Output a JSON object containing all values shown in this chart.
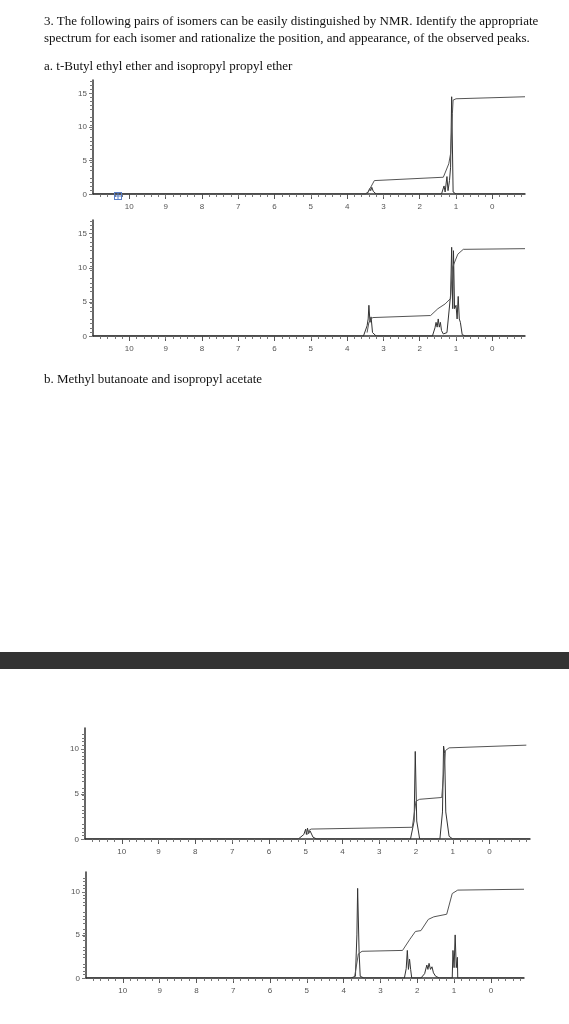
{
  "chart_data": [
    {
      "type": "line",
      "title": "3. The following pairs of isomers can be easily distinguished by NMR. Identify the appropriate spectrum for each isomer and rationalize the position, and appearance, of the observed peaks.",
      "subtitle": "a. t-Butyl ethyl ether and isopropyl propyl ether",
      "xlim": [
        11,
        -0.9
      ],
      "ylim": [
        0,
        17
      ],
      "xticks": [
        10,
        9,
        8,
        7,
        6,
        5,
        4,
        3,
        2,
        1,
        0
      ],
      "yticks": [
        0,
        5,
        10,
        15
      ],
      "grid": false,
      "series": [
        {
          "color": "#333333",
          "x": [
            11,
            3.5,
            3.42,
            3.38,
            3.35,
            3.32,
            3.28,
            3.2,
            1.4,
            1.33,
            1.3,
            1.25,
            1.22,
            1.18,
            1.15,
            1.12,
            1.08,
            1.0,
            -0.9
          ],
          "values": [
            0,
            0,
            0.3,
            0.8,
            0.5,
            1.0,
            0.4,
            0,
            0,
            1.2,
            0.3,
            2.6,
            0.5,
            2.0,
            4.0,
            14.5,
            0.3,
            0,
            0
          ]
        },
        {
          "color": "#555555",
          "x": [
            3.45,
            3.3,
            3.25,
            1.35,
            1.2,
            1.15,
            1.1,
            1.08,
            1.0,
            -0.9
          ],
          "values": [
            0,
            1.5,
            2.0,
            2.5,
            4.5,
            6.0,
            12.0,
            14.0,
            14.2,
            14.5
          ]
        }
      ]
    },
    {
      "type": "line",
      "xlim": [
        11,
        -0.9
      ],
      "ylim": [
        0,
        17
      ],
      "xticks": [
        10,
        9,
        8,
        7,
        6,
        5,
        4,
        3,
        2,
        1,
        0
      ],
      "yticks": [
        0,
        5,
        10,
        15
      ],
      "grid": false,
      "series": [
        {
          "color": "#333333",
          "x": [
            11,
            3.55,
            3.45,
            3.42,
            3.4,
            3.37,
            3.34,
            3.3,
            3.2,
            1.65,
            1.58,
            1.55,
            1.52,
            1.49,
            1.46,
            1.43,
            1.4,
            1.35,
            1.25,
            1.15,
            1.12,
            1.09,
            1.07,
            1.04,
            1.0,
            0.97,
            0.94,
            0.91,
            0.88,
            0.83,
            0.75,
            -0.9
          ],
          "values": [
            0,
            0,
            1.5,
            2.5,
            4.5,
            2.0,
            2.8,
            0.5,
            0,
            0,
            1.2,
            2.0,
            1.3,
            2.5,
            1.3,
            2.0,
            0.8,
            0.3,
            0.5,
            6.0,
            13.0,
            4.0,
            12.5,
            4.0,
            4.5,
            2.5,
            5.8,
            2.5,
            2.0,
            0.2,
            0,
            0
          ]
        },
        {
          "color": "#555555",
          "x": [
            3.45,
            3.4,
            3.3,
            1.7,
            1.5,
            1.3,
            1.15,
            1.1,
            0.95,
            0.8,
            -0.9
          ],
          "values": [
            0.5,
            2.0,
            2.7,
            3.0,
            4.0,
            4.7,
            5.5,
            10.0,
            12.0,
            12.7,
            12.8
          ]
        }
      ]
    },
    {
      "type": "line",
      "title": "b. Methyl butanoate and isopropyl acetate",
      "xlim": [
        11,
        -1.1
      ],
      "ylim": [
        0,
        12.3
      ],
      "xticks": [
        10,
        9,
        8,
        7,
        6,
        5,
        4,
        3,
        2,
        1,
        0
      ],
      "yticks": [
        0,
        5,
        10
      ],
      "grid": false,
      "series": [
        {
          "color": "#333333",
          "x": [
            11,
            5.2,
            5.05,
            5.0,
            4.98,
            4.95,
            4.92,
            4.88,
            4.8,
            4.7,
            2.15,
            2.05,
            2.02,
            1.98,
            1.9,
            1.35,
            1.28,
            1.25,
            1.22,
            1.19,
            1.1,
            1.0,
            -1.1
          ],
          "values": [
            0,
            0,
            0.5,
            1.1,
            0.5,
            1.2,
            0.6,
            0.9,
            0.2,
            0,
            0,
            2.0,
            9.7,
            2.0,
            0,
            0,
            3.0,
            10.3,
            9.5,
            3.0,
            0.3,
            0,
            0
          ]
        },
        {
          "color": "#555555",
          "x": [
            4.95,
            4.9,
            4.85,
            2.1,
            2.0,
            1.9,
            1.3,
            1.2,
            1.1,
            -1.0
          ],
          "values": [
            0.5,
            1.0,
            1.1,
            1.3,
            4.2,
            4.4,
            4.6,
            9.8,
            10.1,
            10.4
          ]
        }
      ]
    },
    {
      "type": "line",
      "xlim": [
        11,
        -0.9
      ],
      "ylim": [
        0,
        12.3
      ],
      "xticks": [
        10,
        9,
        8,
        7,
        6,
        5,
        4,
        3,
        2,
        1,
        0
      ],
      "yticks": [
        0,
        5,
        10
      ],
      "grid": false,
      "series": [
        {
          "color": "#333333",
          "x": [
            11,
            3.8,
            3.68,
            3.64,
            3.62,
            3.58,
            3.55,
            3.45,
            2.35,
            2.3,
            2.27,
            2.24,
            2.21,
            2.18,
            2.15,
            1.9,
            1.8,
            1.74,
            1.71,
            1.68,
            1.64,
            1.6,
            1.56,
            1.5,
            1.4,
            1.05,
            1.03,
            1.0,
            0.97,
            0.94,
            0.91,
            0.9,
            -0.9
          ],
          "values": [
            0,
            0,
            0.2,
            5.0,
            10.4,
            3.0,
            0.2,
            0,
            0,
            1.1,
            3.2,
            1.0,
            2.2,
            1.0,
            0,
            0,
            0.5,
            1.5,
            1.0,
            1.7,
            1.0,
            1.3,
            0.6,
            0.2,
            0,
            0,
            3.2,
            1.2,
            5.0,
            1.2,
            2.4,
            0,
            0
          ]
        },
        {
          "color": "#555555",
          "x": [
            3.7,
            3.6,
            3.5,
            2.4,
            2.2,
            2.05,
            1.9,
            1.7,
            1.55,
            1.2,
            1.05,
            0.9,
            -0.9
          ],
          "values": [
            0.2,
            2.8,
            3.1,
            3.2,
            4.5,
            5.4,
            5.5,
            6.8,
            7.1,
            7.4,
            9.8,
            10.2,
            10.3
          ]
        }
      ]
    }
  ]
}
